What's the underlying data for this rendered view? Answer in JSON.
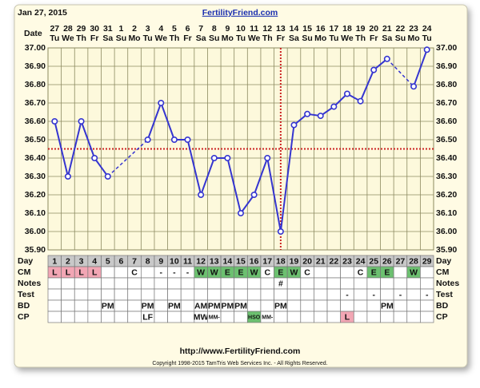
{
  "header": {
    "date": "Jan 27, 2015",
    "site": "FertilityFriend.com"
  },
  "chart_data": {
    "type": "line",
    "x_label": "Date",
    "dates": [
      27,
      28,
      29,
      30,
      31,
      1,
      2,
      3,
      4,
      5,
      6,
      7,
      8,
      9,
      10,
      11,
      12,
      13,
      14,
      15,
      16,
      17,
      18,
      19,
      20,
      21,
      22,
      23,
      24
    ],
    "weekdays": [
      "Tu",
      "We",
      "Th",
      "Fr",
      "Sa",
      "Su",
      "Mo",
      "Tu",
      "We",
      "Th",
      "Fr",
      "Sa",
      "Su",
      "Mo",
      "Tu",
      "We",
      "Th",
      "Fr",
      "Sa",
      "Su",
      "Mo",
      "Tu",
      "We",
      "Th",
      "Fr",
      "Sa",
      "Su",
      "Mo",
      "Tu"
    ],
    "values": [
      36.6,
      36.3,
      36.6,
      36.4,
      36.3,
      null,
      null,
      36.5,
      36.7,
      36.5,
      36.5,
      36.2,
      36.4,
      36.4,
      36.1,
      36.2,
      36.4,
      36.0,
      36.58,
      36.64,
      36.63,
      36.68,
      36.75,
      36.71,
      36.88,
      36.94,
      null,
      36.79,
      36.99
    ],
    "color": "#3535d0",
    "ylim": [
      35.9,
      37.0
    ],
    "yticks": [
      {
        "value": 35.9,
        "label": "35.90"
      },
      {
        "value": 36.0,
        "label": "36.00"
      },
      {
        "value": 36.1,
        "label": "36.10"
      },
      {
        "value": 36.2,
        "label": "36.20"
      },
      {
        "value": 36.3,
        "label": "36.30"
      },
      {
        "value": 36.4,
        "label": "36.40"
      },
      {
        "value": 36.5,
        "label": "36.50"
      },
      {
        "value": 36.6,
        "label": "36.60"
      },
      {
        "value": 36.7,
        "label": "36.70"
      },
      {
        "value": 36.8,
        "label": "36.80"
      },
      {
        "value": 36.9,
        "label": "36.90"
      },
      {
        "value": 37.0,
        "label": "37.00"
      }
    ],
    "grid": true,
    "coverline": 36.45,
    "ovulation_day": 18,
    "reference_color": "#cc2222"
  },
  "table": {
    "labels": [
      "Day",
      "CM",
      "Notes",
      "Test",
      "BD",
      "CP"
    ],
    "rows": [
      [
        1,
        2,
        3,
        4,
        5,
        6,
        7,
        8,
        9,
        10,
        11,
        12,
        13,
        14,
        15,
        16,
        17,
        18,
        19,
        20,
        21,
        22,
        23,
        24,
        25,
        26,
        27,
        28,
        29
      ],
      [
        "L",
        "L",
        "L",
        "L",
        null,
        null,
        "C",
        null,
        "-",
        "-",
        "-",
        "W",
        "W",
        "E",
        "E",
        "W",
        "C",
        "E",
        "W",
        "C",
        null,
        null,
        null,
        "C",
        "E",
        "E",
        null,
        "W",
        null
      ],
      [
        null,
        null,
        null,
        null,
        null,
        null,
        null,
        null,
        null,
        null,
        null,
        null,
        null,
        null,
        null,
        null,
        null,
        "#",
        null,
        null,
        null,
        null,
        null,
        null,
        null,
        null,
        null,
        null,
        null
      ],
      [
        null,
        null,
        null,
        null,
        null,
        null,
        null,
        null,
        null,
        null,
        null,
        null,
        null,
        null,
        null,
        null,
        null,
        null,
        null,
        null,
        null,
        null,
        "-",
        null,
        "-",
        null,
        "-",
        null,
        "-"
      ],
      [
        null,
        null,
        null,
        null,
        "PM",
        null,
        null,
        "PM",
        null,
        "PM",
        null,
        "AM",
        "PM",
        "PM",
        "PM",
        null,
        null,
        "PM",
        null,
        null,
        null,
        null,
        null,
        null,
        null,
        "PM",
        null,
        null,
        null
      ],
      [
        null,
        null,
        null,
        null,
        null,
        null,
        null,
        "LF",
        null,
        null,
        null,
        "MW",
        "MM-",
        null,
        null,
        "HSO",
        "MM-",
        null,
        null,
        null,
        null,
        null,
        "L",
        null,
        null,
        null,
        null,
        null,
        null
      ]
    ],
    "cell_colors": {
      "L": "#f2a6b4",
      "W": "#6cc070",
      "E": "#6cc070",
      "HSO": "#6cc070"
    }
  },
  "footer": {
    "url": "http://www.FertilityFriend.com",
    "copyright": "Copyright 1998-2015 TamTris Web Services Inc. - All Rights Reserved."
  }
}
